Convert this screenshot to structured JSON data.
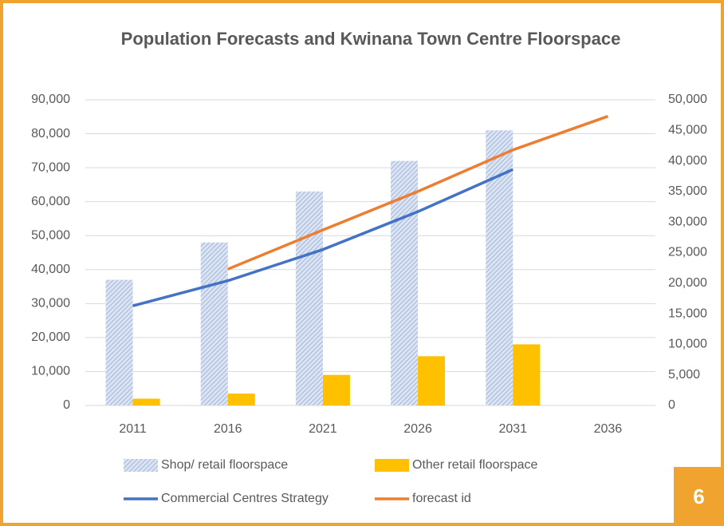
{
  "chart_data": {
    "type": "bar",
    "title": "Population Forecasts and Kwinana Town Centre Floorspace",
    "categories": [
      "2011",
      "2016",
      "2021",
      "2026",
      "2031",
      "2036"
    ],
    "series": [
      {
        "name": "Shop/ retail floorspace",
        "color": "#b4c7e7",
        "type": "bar",
        "values": [
          37000,
          48000,
          63000,
          72000,
          81000,
          null
        ]
      },
      {
        "name": "Other retail floorspace",
        "color": "#ffc000",
        "type": "bar",
        "values": [
          2000,
          3500,
          9000,
          14500,
          18000,
          null
        ]
      },
      {
        "name": "Commercial Centres Strategy",
        "color": "#4472c4",
        "type": "line",
        "axis": "y2",
        "values": [
          16300,
          20400,
          25500,
          31700,
          38600,
          null
        ]
      },
      {
        "name": "forecast id",
        "color": "#ed7d31",
        "type": "line",
        "axis": "y2",
        "values": [
          null,
          22300,
          28700,
          35000,
          41800,
          47300
        ]
      }
    ],
    "ylim": [
      0,
      90000
    ],
    "yticks": [
      0,
      {
        "value": 10000,
        "label": "10,000"
      },
      {
        "value": 20000,
        "label": "20,000"
      },
      {
        "value": 30000,
        "label": "30,000"
      },
      {
        "value": 40000,
        "label": "40,000"
      },
      {
        "value": 50000,
        "label": "50,000"
      },
      {
        "value": 60000,
        "label": "60,000"
      },
      {
        "value": 70000,
        "label": "70,000"
      },
      {
        "value": 80000,
        "label": "80,000"
      },
      {
        "value": 90000,
        "label": "90,000"
      }
    ],
    "y2lim": [
      0,
      50000
    ],
    "y2ticks": [
      0,
      {
        "value": 5000,
        "label": "5,000"
      },
      {
        "value": 10000,
        "label": "10,000"
      },
      {
        "value": 15000,
        "label": "15,000"
      },
      {
        "value": 20000,
        "label": "20,000"
      },
      {
        "value": 25000,
        "label": "25,000"
      },
      {
        "value": 30000,
        "label": "30,000"
      },
      {
        "value": 35000,
        "label": "35,000"
      },
      {
        "value": 40000,
        "label": "40,000"
      },
      {
        "value": 45000,
        "label": "45,000"
      },
      {
        "value": 50000,
        "label": "50,000"
      }
    ],
    "grid": true,
    "legend": "bottom"
  },
  "page_number": "6"
}
